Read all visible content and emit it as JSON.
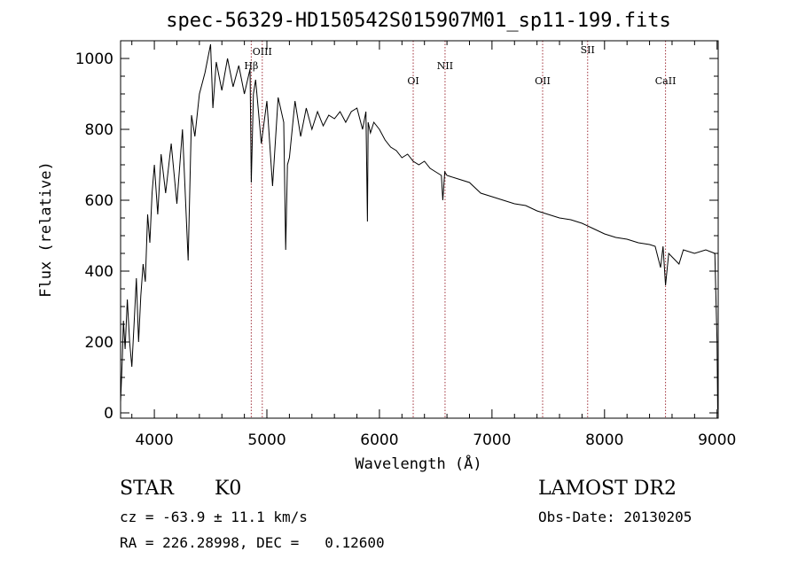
{
  "chart_data": {
    "type": "line",
    "title": "spec-56329-HD150542S015907M01_sp11-199.fits",
    "xlabel": "Wavelength (Å)",
    "ylabel": "Flux (relative)",
    "xlim": [
      3700,
      9010
    ],
    "ylim": [
      -15,
      1050
    ],
    "xticks": [
      4000,
      5000,
      6000,
      7000,
      8000,
      9000
    ],
    "yticks": [
      0,
      200,
      400,
      600,
      800,
      1000
    ],
    "grid": false,
    "legend": "none",
    "series": [
      {
        "color": "#000000",
        "x": [
          3700,
          3715,
          3725,
          3740,
          3760,
          3780,
          3800,
          3820,
          3840,
          3860,
          3880,
          3900,
          3920,
          3940,
          3960,
          3980,
          4000,
          4030,
          4060,
          4100,
          4150,
          4200,
          4250,
          4300,
          4330,
          4360,
          4400,
          4450,
          4500,
          4520,
          4550,
          4600,
          4650,
          4700,
          4750,
          4800,
          4850,
          4861,
          4880,
          4900,
          4950,
          5000,
          5050,
          5100,
          5150,
          5167,
          5183,
          5200,
          5250,
          5300,
          5350,
          5400,
          5450,
          5500,
          5550,
          5600,
          5650,
          5700,
          5750,
          5800,
          5850,
          5880,
          5893,
          5900,
          5920,
          5950,
          6000,
          6050,
          6100,
          6150,
          6200,
          6250,
          6300,
          6350,
          6400,
          6450,
          6500,
          6550,
          6563,
          6580,
          6600,
          6700,
          6800,
          6900,
          7000,
          7100,
          7200,
          7300,
          7400,
          7500,
          7600,
          7700,
          7800,
          7900,
          8000,
          8100,
          8200,
          8300,
          8400,
          8450,
          8498,
          8520,
          8542,
          8570,
          8600,
          8662,
          8700,
          8800,
          8900,
          8980,
          9000,
          9005
        ],
        "y": [
          30,
          150,
          260,
          180,
          320,
          200,
          130,
          250,
          380,
          200,
          330,
          420,
          370,
          560,
          480,
          620,
          700,
          560,
          730,
          620,
          760,
          590,
          800,
          430,
          840,
          780,
          900,
          960,
          1040,
          860,
          990,
          910,
          1000,
          920,
          980,
          900,
          970,
          650,
          900,
          940,
          760,
          880,
          640,
          890,
          820,
          460,
          700,
          720,
          880,
          780,
          860,
          800,
          850,
          810,
          840,
          830,
          850,
          820,
          850,
          860,
          800,
          850,
          540,
          820,
          790,
          820,
          800,
          770,
          750,
          740,
          720,
          730,
          710,
          700,
          710,
          690,
          680,
          670,
          600,
          680,
          670,
          660,
          650,
          620,
          610,
          600,
          590,
          585,
          570,
          560,
          550,
          545,
          535,
          520,
          505,
          495,
          490,
          480,
          475,
          470,
          410,
          470,
          360,
          450,
          440,
          420,
          460,
          450,
          460,
          450,
          200,
          10
        ]
      }
    ],
    "lines": [
      {
        "label": "Hβ",
        "x": 4861
      },
      {
        "label": "OIII",
        "x": 4959
      },
      {
        "label": "OI",
        "x": 6300
      },
      {
        "label": "NII",
        "x": 6583
      },
      {
        "label": "OII",
        "x": 7450
      },
      {
        "label": "SII",
        "x": 7850
      },
      {
        "label": "CaII",
        "x": 8542
      }
    ]
  },
  "info": {
    "object_class": "STAR",
    "subclass": "K0",
    "survey": "LAMOST DR2",
    "cz": "cz = -63.9 ± 11.1 km/s",
    "obs_date": "Obs-Date: 20130205",
    "coords": "RA = 226.28998, DEC =   0.12600"
  }
}
